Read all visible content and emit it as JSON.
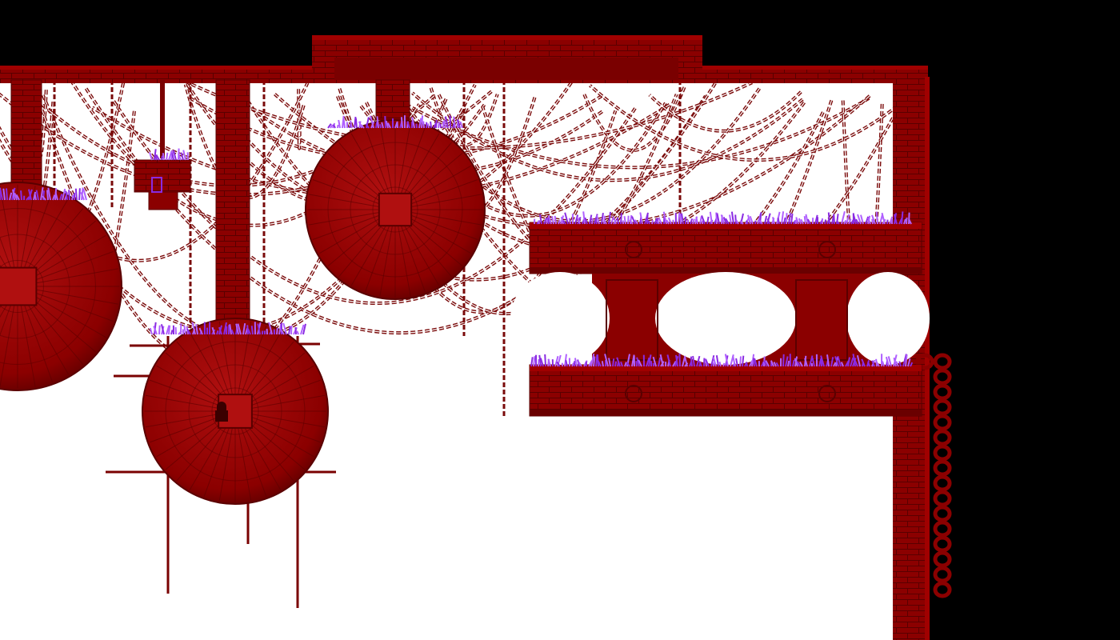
{
  "level": {
    "colors": {
      "void": "#000000",
      "background": "#ffffff",
      "structure": "#8b0000",
      "structure_dark": "#5a0000",
      "structure_light": "#b01010",
      "chain": "#7a0a0a",
      "grass": "#8a2be2",
      "grass_light": "#b060ff"
    },
    "objects": {
      "orbs": 3,
      "hanging_blocks": 1,
      "platforms": 2,
      "support_pillars": 2,
      "grass_patches": 6
    }
  }
}
